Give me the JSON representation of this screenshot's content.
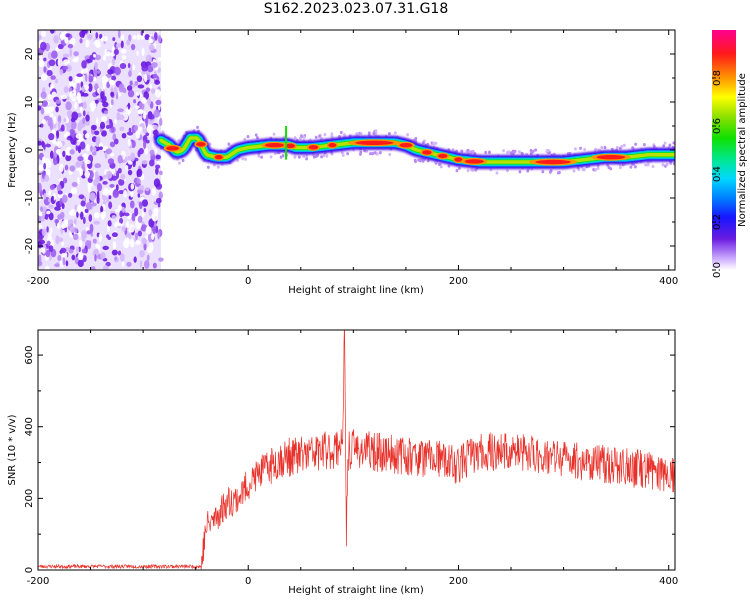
{
  "title": "S162.2023.023.07.31.G18",
  "chart_data": [
    {
      "type": "heatmap",
      "xlabel": "Height of straight line (km)",
      "ylabel": "Frequency (Hz)",
      "xlim": [
        -200,
        406
      ],
      "ylim": [
        -25,
        25
      ],
      "x_ticks": [
        -200,
        0,
        200,
        400
      ],
      "y_ticks": [
        -20,
        -10,
        0,
        10,
        20
      ],
      "noise_region_x": [
        -200,
        -83
      ],
      "ridge": {
        "x": [
          -83,
          -75,
          -68,
          -62,
          -55,
          -48,
          -40,
          -30,
          -20,
          -10,
          0,
          20,
          30,
          38,
          45,
          60,
          80,
          100,
          120,
          140,
          150,
          160,
          170,
          180,
          200,
          220,
          250,
          280,
          300,
          320,
          340,
          360,
          380,
          406
        ],
        "y": [
          2.0,
          1.0,
          -0.5,
          0.0,
          2.5,
          2.5,
          -1.0,
          -1.5,
          -1.5,
          0.0,
          0.5,
          1.0,
          1.0,
          1.0,
          0.5,
          0.5,
          1.0,
          1.5,
          1.5,
          1.5,
          1.0,
          0.0,
          -0.5,
          -1.0,
          -2.0,
          -2.5,
          -2.5,
          -2.5,
          -2.5,
          -2.0,
          -1.5,
          -1.5,
          -1.0,
          -1.0
        ]
      },
      "colorbar": {
        "label": "Normalized spectral amplitude",
        "range": [
          0,
          1
        ],
        "ticks": [
          "0.0",
          "0.2",
          "0.4",
          "0.6",
          "0.8"
        ]
      }
    },
    {
      "type": "line",
      "xlabel": "Height of straight line (km)",
      "ylabel": "SNR (10 * v/v)",
      "xlim": [
        -200,
        406
      ],
      "ylim": [
        0,
        670
      ],
      "x_ticks": [
        -200,
        0,
        200,
        400
      ],
      "y_ticks": [
        0,
        200,
        400,
        600
      ],
      "color": "#e8312a",
      "series": [
        {
          "x": [
            -200,
            -100,
            -45,
            -40,
            -30,
            -20,
            -10,
            0,
            10,
            20,
            30,
            50,
            70,
            85,
            90,
            92,
            93,
            95,
            100,
            120,
            150,
            180,
            200,
            210,
            230,
            250,
            280,
            300,
            330,
            350,
            380,
            406
          ],
          "y": [
            10,
            10,
            10,
            120,
            150,
            190,
            200,
            240,
            270,
            290,
            310,
            320,
            330,
            340,
            380,
            660,
            90,
            330,
            340,
            330,
            320,
            310,
            290,
            320,
            330,
            330,
            320,
            310,
            300,
            290,
            280,
            270
          ]
        }
      ]
    }
  ]
}
